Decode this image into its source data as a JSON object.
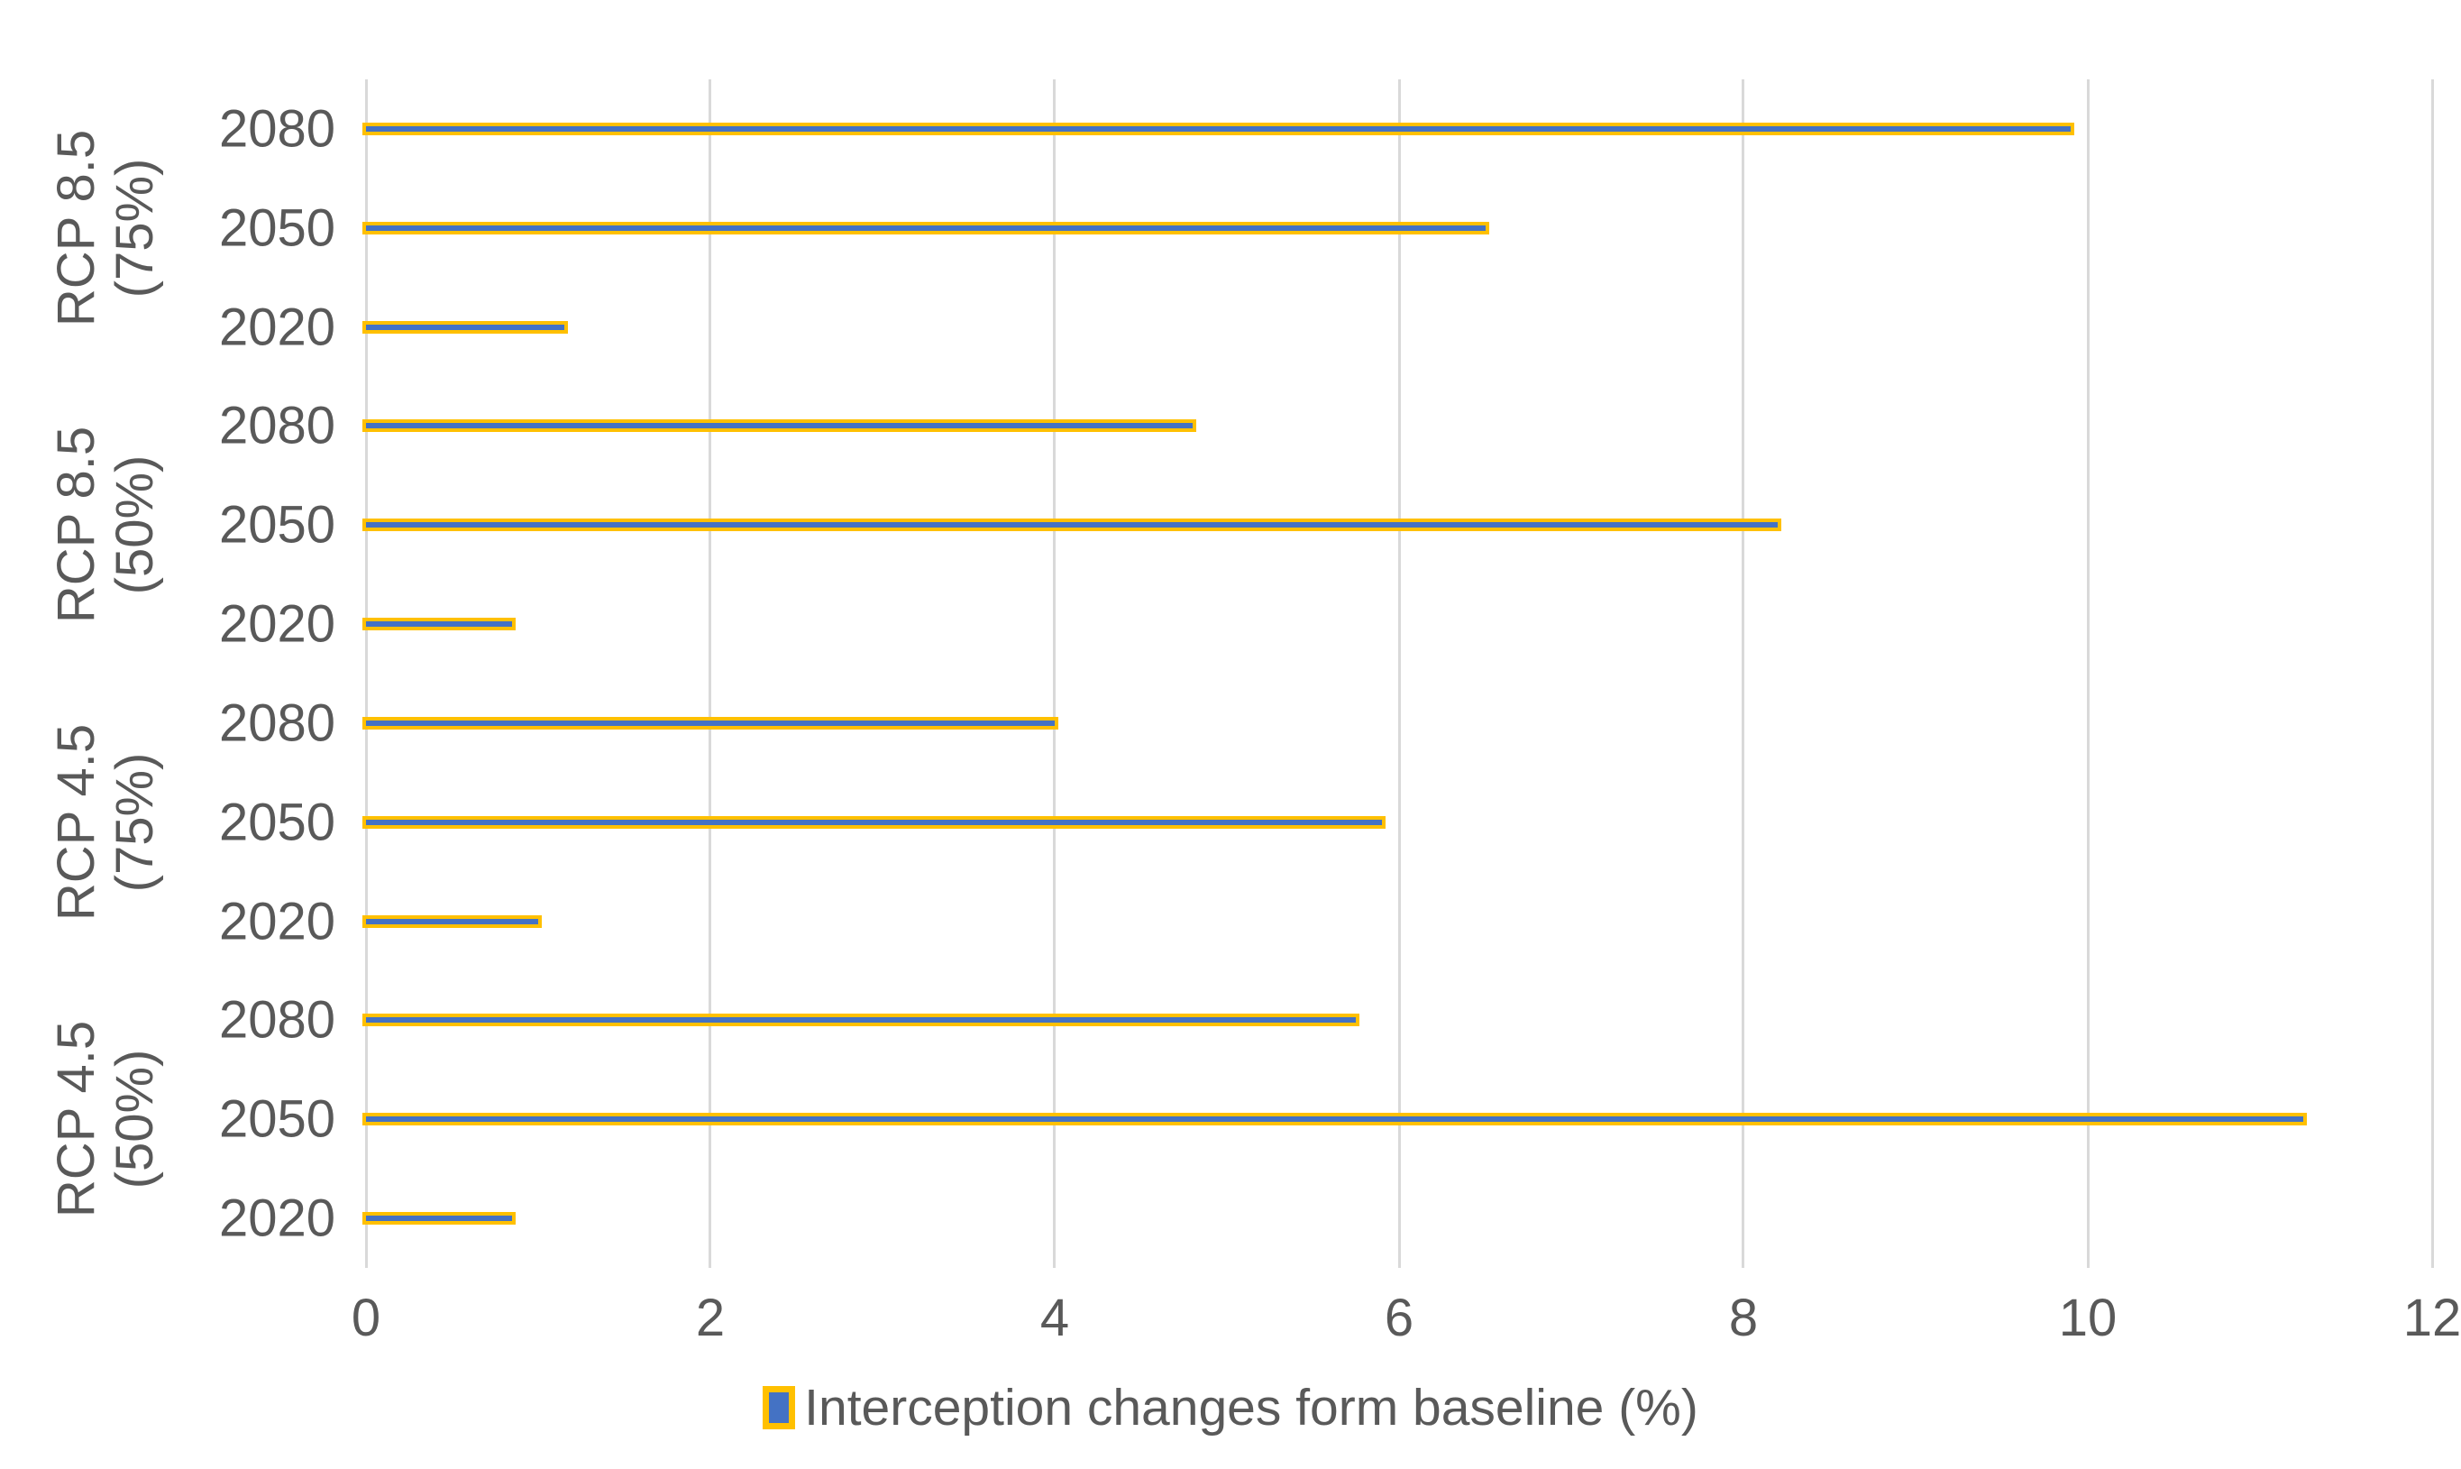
{
  "chart_data": {
    "type": "bar",
    "orientation": "horizontal",
    "title": "",
    "legend": "Interception changes form baseline (%)",
    "xlabel": "",
    "ylabel": "",
    "xlim": [
      0,
      12
    ],
    "xticks": [
      0,
      2,
      4,
      6,
      8,
      10,
      12
    ],
    "xtick_labels": [
      "0",
      "2",
      "4",
      "6",
      "8",
      "10",
      "12"
    ],
    "grid": "vertical",
    "legend_position": "bottom-center",
    "groups": [
      {
        "label": "RCP 8.5 (75%)",
        "label_lines": [
          "RCP 8.5",
          "(75%)"
        ],
        "rows": [
          {
            "year": "2080",
            "value": 9.9
          },
          {
            "year": "2050",
            "value": 6.5
          },
          {
            "year": "2020",
            "value": 1.15
          }
        ]
      },
      {
        "label": "RCP 8.5 (50%)",
        "label_lines": [
          "RCP 8.5",
          "(50%)"
        ],
        "rows": [
          {
            "year": "2080",
            "value": 4.8
          },
          {
            "year": "2050",
            "value": 8.2
          },
          {
            "year": "2020",
            "value": 0.85
          }
        ]
      },
      {
        "label": "RCP 4.5 (75%)",
        "label_lines": [
          "RCP 4.5",
          "(75%)"
        ],
        "rows": [
          {
            "year": "2080",
            "value": 4.0
          },
          {
            "year": "2050",
            "value": 5.9
          },
          {
            "year": "2020",
            "value": 1.0
          }
        ]
      },
      {
        "label": "RCP 4.5 (50%)",
        "label_lines": [
          "RCP 4.5",
          "(50%)"
        ],
        "rows": [
          {
            "year": "2080",
            "value": 5.75
          },
          {
            "year": "2050",
            "value": 11.25
          },
          {
            "year": "2020",
            "value": 0.85
          }
        ]
      }
    ],
    "colors": {
      "bar_fill": "#4472C4",
      "bar_border": "#FFC000",
      "gridline": "#D9D9D9",
      "text": "#595959",
      "background": "#FFFFFF"
    }
  }
}
